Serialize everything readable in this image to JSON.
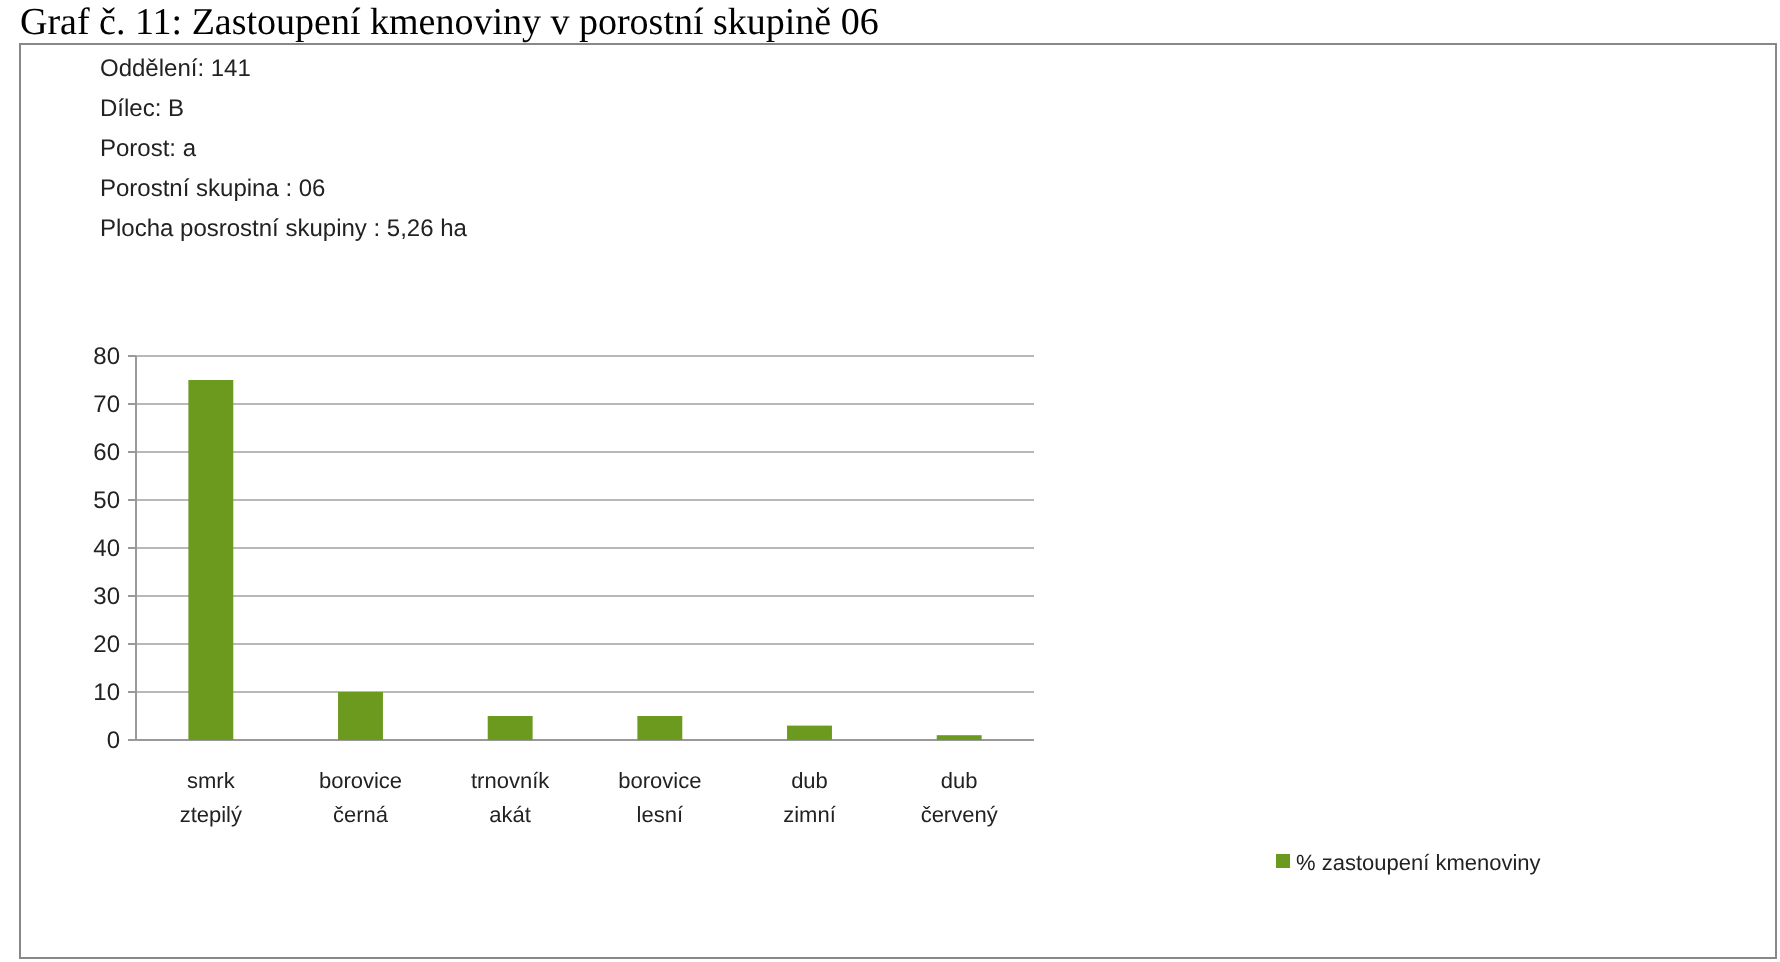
{
  "chart_data": {
    "type": "bar",
    "title": "Graf č. 11: Zastoupení kmenoviny v porostní skupině 06",
    "annotations": [
      "Oddělení: 141",
      "Dílec: B",
      "Porost: a",
      "Porostní skupina : 06",
      "Plocha posrostní skupiny : 5,26 ha"
    ],
    "categories": [
      "smrk ztepilý",
      "borovice černá",
      "trnovník akát",
      "borovice lesní",
      "dub zimní",
      "dub červený"
    ],
    "series": [
      {
        "name": "% zastoupení kmenoviny",
        "color": "#6b9a1f",
        "values": [
          75,
          10,
          5,
          5,
          3,
          1
        ]
      }
    ],
    "ylim": [
      0,
      80
    ],
    "yticks": [
      0,
      10,
      20,
      30,
      40,
      50,
      60,
      70,
      80
    ],
    "grid": "y",
    "legend": "bottom right"
  }
}
